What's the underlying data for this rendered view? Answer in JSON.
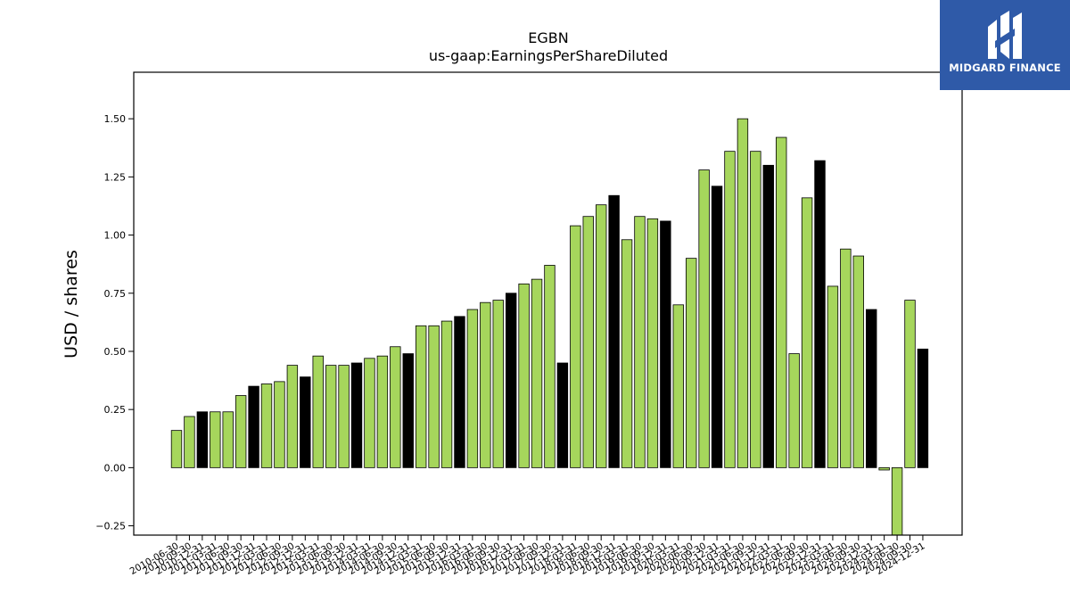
{
  "chart_data": {
    "type": "bar",
    "title": "EGBN",
    "subtitle": "us-gaap:EarningsPerShareDiluted",
    "ylabel": "USD / shares",
    "xlabel": "",
    "ylim": [
      -0.29,
      1.7
    ],
    "yticks": [
      -0.25,
      0.0,
      0.25,
      0.5,
      0.75,
      1.0,
      1.25,
      1.5
    ],
    "grid": false,
    "colors": {
      "quarterly": "#a6d65c",
      "annual": "#000000",
      "edge": "#000000"
    },
    "categories": [
      "2010-06-30",
      "2010-09-30",
      "2010-12-31",
      "2011-03-31",
      "2011-06-30",
      "2011-09-30",
      "2011-12-31",
      "2012-03-31",
      "2012-06-30",
      "2012-09-30",
      "2012-12-31",
      "2013-03-31",
      "2013-06-30",
      "2013-09-30",
      "2013-12-31",
      "2014-03-31",
      "2014-06-30",
      "2014-09-30",
      "2014-12-31",
      "2015-03-31",
      "2015-06-30",
      "2015-09-30",
      "2015-12-31",
      "2016-03-31",
      "2016-06-30",
      "2016-09-30",
      "2016-12-31",
      "2017-03-31",
      "2017-06-30",
      "2017-09-30",
      "2017-12-31",
      "2018-03-31",
      "2018-06-30",
      "2018-09-30",
      "2018-12-31",
      "2019-03-31",
      "2019-06-30",
      "2019-09-30",
      "2019-12-31",
      "2020-03-31",
      "2020-06-30",
      "2020-09-30",
      "2020-12-31",
      "2021-03-31",
      "2021-06-30",
      "2021-09-30",
      "2021-12-31",
      "2022-03-31",
      "2022-06-30",
      "2022-09-30",
      "2022-12-31",
      "2023-03-31",
      "2023-06-30",
      "2023-09-30",
      "2023-12-31",
      "2024-03-31",
      "2024-06-30",
      "2024-09-30",
      "2024-12-31"
    ],
    "values": [
      0.16,
      0.22,
      0.24,
      0.24,
      0.24,
      0.31,
      0.35,
      0.36,
      0.37,
      0.44,
      0.39,
      0.48,
      0.44,
      0.44,
      0.45,
      0.47,
      0.48,
      0.52,
      0.49,
      0.61,
      0.61,
      0.63,
      0.65,
      0.68,
      0.71,
      0.72,
      0.75,
      0.79,
      0.81,
      0.87,
      0.45,
      1.04,
      1.08,
      1.13,
      1.17,
      0.98,
      1.08,
      1.07,
      1.06,
      0.7,
      0.9,
      1.28,
      1.21,
      1.36,
      1.5,
      1.36,
      1.3,
      1.42,
      0.49,
      1.16,
      1.32,
      0.78,
      0.94,
      0.91,
      0.68,
      -0.01,
      -0.3,
      0.72,
      0.51
    ],
    "annual": [
      false,
      false,
      true,
      false,
      false,
      false,
      true,
      false,
      false,
      false,
      true,
      false,
      false,
      false,
      true,
      false,
      false,
      false,
      true,
      false,
      false,
      false,
      true,
      false,
      false,
      false,
      true,
      false,
      false,
      false,
      true,
      false,
      false,
      false,
      true,
      false,
      false,
      false,
      true,
      false,
      false,
      false,
      true,
      false,
      false,
      false,
      true,
      false,
      false,
      false,
      true,
      false,
      false,
      false,
      true,
      false,
      false,
      false,
      true
    ]
  },
  "logo": {
    "text": "MIDGARD FINANCE",
    "icon": "midgard-logo-icon"
  }
}
